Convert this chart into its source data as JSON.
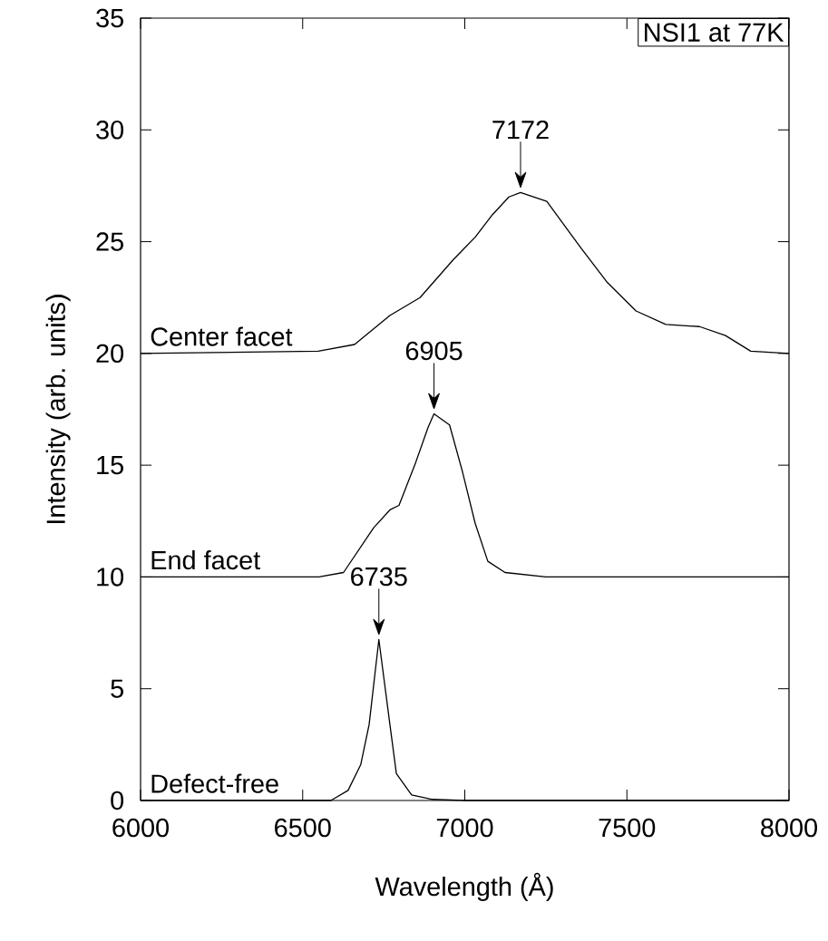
{
  "chart_data": {
    "type": "line",
    "xlabel": "Wavelength (Å)",
    "ylabel": "Intensity (arb. units)",
    "xlim": [
      6000,
      8000
    ],
    "ylim": [
      0,
      35
    ],
    "xticks": [
      6000,
      6500,
      7000,
      7500,
      8000
    ],
    "yticks": [
      0,
      5,
      10,
      15,
      20,
      25,
      30,
      35
    ],
    "grid": false,
    "legend": "left",
    "marker": "none",
    "line_style": "solid",
    "series": [
      {
        "name": "Center facet",
        "color": "#000000",
        "x": [
          6000,
          6548,
          6660,
          6769,
          6862,
          6965,
          7032,
          7085,
          7136,
          7172,
          7253,
          7359,
          7438,
          7528,
          7620,
          7724,
          7804,
          7882,
          8000
        ],
        "values": [
          20.0,
          20.1,
          20.4,
          21.7,
          22.5,
          24.2,
          25.2,
          26.2,
          27.0,
          27.2,
          26.8,
          24.7,
          23.2,
          21.9,
          21.3,
          21.2,
          20.8,
          20.1,
          20.0
        ]
      },
      {
        "name": "End facet",
        "color": "#000000",
        "x": [
          6000,
          6550,
          6626,
          6719,
          6769,
          6797,
          6848,
          6887,
          6905,
          6953,
          6993,
          7032,
          7071,
          7124,
          7250,
          8000
        ],
        "values": [
          10.0,
          10.0,
          10.2,
          12.2,
          13.0,
          13.2,
          15.1,
          16.7,
          17.3,
          16.8,
          14.7,
          12.4,
          10.7,
          10.2,
          10.0,
          10.0
        ]
      },
      {
        "name": "Defect-free",
        "color": "#000000",
        "x": [
          6000,
          6587,
          6640,
          6679,
          6705,
          6735,
          6769,
          6789,
          6836,
          6900,
          7000,
          8000
        ],
        "values": [
          0.0,
          0.0,
          0.45,
          1.6,
          3.4,
          7.2,
          3.4,
          1.2,
          0.25,
          0.05,
          0.0,
          0.0
        ]
      }
    ],
    "annotations": [
      {
        "text": "7172",
        "x": 7172,
        "y": 27.2
      },
      {
        "text": "6905",
        "x": 6905,
        "y": 17.3
      },
      {
        "text": "6735",
        "x": 6735,
        "y": 7.2
      },
      "NSI1 at 77K"
    ]
  }
}
